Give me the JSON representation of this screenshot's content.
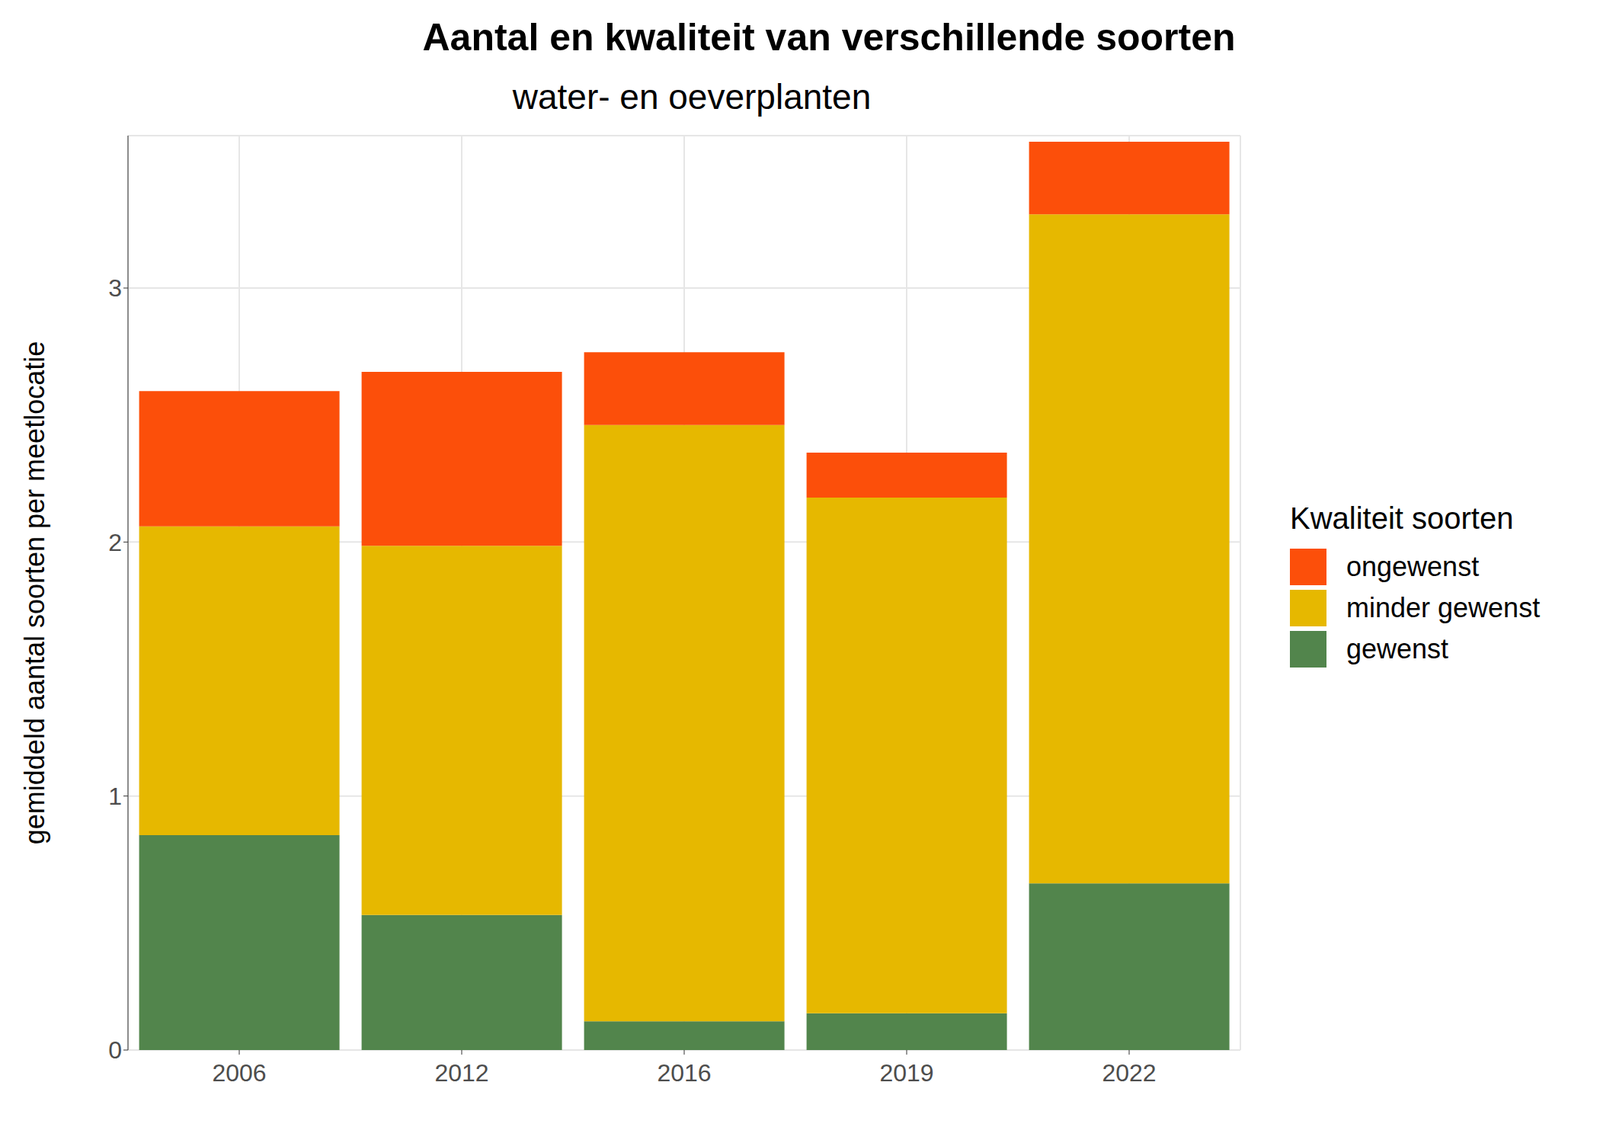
{
  "chart_data": {
    "type": "bar",
    "title": "Aantal en kwaliteit van verschillende soorten",
    "subtitle": "water- en oeverplanten",
    "y_label": "gemiddeld aantal soorten per meetlocatie",
    "legend_title": "Kwaliteit soorten",
    "categories": [
      "2006",
      "2012",
      "2016",
      "2019",
      "2022"
    ],
    "series": [
      {
        "name": "gewenst",
        "color": "#52854C",
        "values": [
          0.846,
          0.532,
          0.113,
          0.145,
          0.656
        ]
      },
      {
        "name": "minder gewenst",
        "color": "#E6B800",
        "values": [
          1.216,
          1.453,
          2.348,
          2.03,
          2.634
        ]
      },
      {
        "name": "ongewenst",
        "color": "#FC4F0A",
        "values": [
          0.532,
          0.685,
          0.286,
          0.177,
          0.286
        ]
      }
    ],
    "stacked": true,
    "ylim": [
      0,
      3.6
    ],
    "yticks": [
      0,
      1,
      2,
      3
    ],
    "grid": true,
    "legend": "right"
  }
}
